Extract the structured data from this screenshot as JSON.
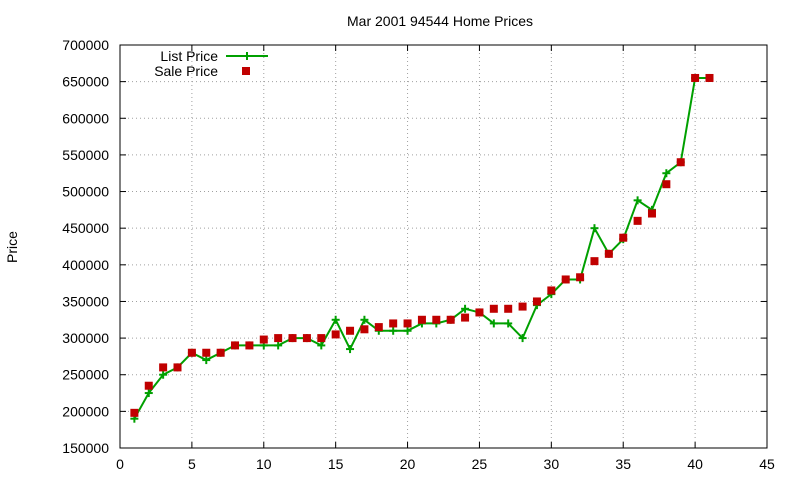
{
  "chart_data": {
    "type": "line",
    "title": "Mar 2001 94544 Home Prices",
    "xlabel": "",
    "ylabel": "Price",
    "xlim": [
      0,
      45
    ],
    "ylim": [
      150000,
      700000
    ],
    "xticks": [
      0,
      5,
      10,
      15,
      20,
      25,
      30,
      35,
      40,
      45
    ],
    "yticks": [
      150000,
      200000,
      250000,
      300000,
      350000,
      400000,
      450000,
      500000,
      550000,
      600000,
      650000,
      700000
    ],
    "grid": true,
    "legend_position": "top-left",
    "series": [
      {
        "name": "List Price",
        "style": "line-with-plus-markers",
        "color": "#00a000",
        "x": [
          1,
          2,
          3,
          4,
          5,
          6,
          7,
          8,
          9,
          10,
          11,
          12,
          13,
          14,
          15,
          16,
          17,
          18,
          19,
          20,
          21,
          22,
          23,
          24,
          25,
          26,
          27,
          28,
          29,
          30,
          31,
          32,
          33,
          34,
          35,
          36,
          37,
          38,
          39,
          40,
          41
        ],
        "values": [
          190000,
          225000,
          250000,
          260000,
          280000,
          270000,
          280000,
          290000,
          290000,
          290000,
          290000,
          300000,
          300000,
          290000,
          325000,
          285000,
          325000,
          310000,
          310000,
          310000,
          320000,
          320000,
          325000,
          340000,
          335000,
          320000,
          320000,
          300000,
          345000,
          360000,
          380000,
          380000,
          450000,
          415000,
          435000,
          488000,
          475000,
          525000,
          540000,
          655000,
          655000
        ]
      },
      {
        "name": "Sale Price",
        "style": "square-markers",
        "color": "#c00000",
        "x": [
          1,
          2,
          3,
          4,
          5,
          6,
          7,
          8,
          9,
          10,
          11,
          12,
          13,
          14,
          15,
          16,
          17,
          18,
          19,
          20,
          21,
          22,
          23,
          24,
          25,
          26,
          27,
          28,
          29,
          30,
          31,
          32,
          33,
          34,
          35,
          36,
          37,
          38,
          39,
          40,
          41
        ],
        "values": [
          198000,
          235000,
          260000,
          260000,
          280000,
          280000,
          280000,
          290000,
          290000,
          298000,
          300000,
          300000,
          300000,
          300000,
          305000,
          310000,
          312000,
          315000,
          320000,
          320000,
          325000,
          325000,
          325000,
          328000,
          335000,
          340000,
          340000,
          343000,
          350000,
          365000,
          380000,
          383000,
          405000,
          415000,
          437000,
          460000,
          470000,
          510000,
          540000,
          655000,
          655000
        ]
      }
    ]
  }
}
